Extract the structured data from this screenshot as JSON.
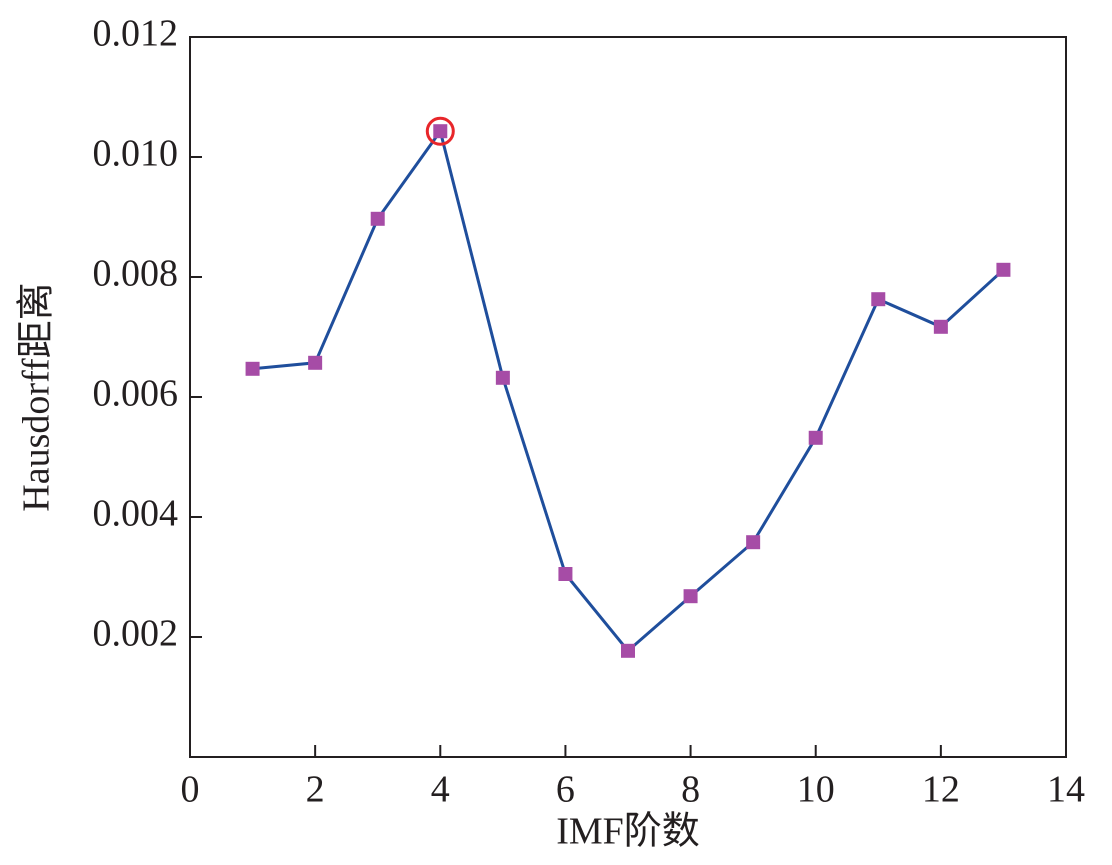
{
  "chart_data": {
    "type": "line",
    "xlabel": "IMF阶数",
    "ylabel": "Hausdorff距离",
    "x": [
      1,
      2,
      3,
      4,
      5,
      6,
      7,
      8,
      9,
      10,
      11,
      12,
      13
    ],
    "series": [
      {
        "name": "Hausdorff",
        "color": "#1f4e9c",
        "marker_color": "#a64ca6",
        "values": [
          0.00647,
          0.00657,
          0.00897,
          0.01043,
          0.00632,
          0.00305,
          0.00177,
          0.00268,
          0.00358,
          0.00532,
          0.00763,
          0.00717,
          0.00812
        ]
      }
    ],
    "highlight_index": 3,
    "highlight_color": "#e8262a",
    "xlim": [
      0,
      14
    ],
    "xticks": [
      0,
      2,
      4,
      6,
      8,
      10,
      12,
      14
    ],
    "ylim": [
      0,
      0.012
    ],
    "yticks": [
      0.002,
      0.004,
      0.006,
      0.008,
      {
        "value": 0.01,
        "label": "0.010"
      },
      0.012
    ]
  }
}
